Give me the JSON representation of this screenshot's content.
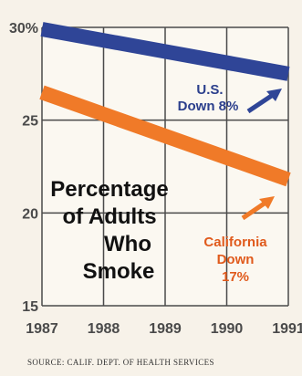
{
  "chart_data": {
    "type": "line",
    "title_lines": [
      "Percentage",
      "of Adults",
      "Who",
      "Smoke"
    ],
    "x": [
      1987,
      1991
    ],
    "x_tick_labels": [
      "1987",
      "1988",
      "1989",
      "1990",
      "1991"
    ],
    "y_tick_labels": [
      "30%",
      "25",
      "20",
      "15"
    ],
    "ylim": [
      15,
      30
    ],
    "xlim": [
      1987,
      1991
    ],
    "grid": true,
    "series": [
      {
        "key": "us",
        "values": [
          29.9,
          27.5
        ],
        "label_lines": [
          "U.S.",
          "Down 8%"
        ],
        "color": "#2f4597"
      },
      {
        "key": "ca",
        "values": [
          26.5,
          21.8
        ],
        "label_lines": [
          "California",
          "Down",
          "17%"
        ],
        "color": "#f07a28"
      }
    ],
    "source": "SOURCE: CALIF. DEPT. OF HEALTH SERVICES"
  },
  "colors": {
    "background": "#f7f2e9",
    "plot_background": "#fbf8f1",
    "grid": "#4a4a4a",
    "us_line": "#2f4597",
    "ca_line": "#f07a28"
  }
}
